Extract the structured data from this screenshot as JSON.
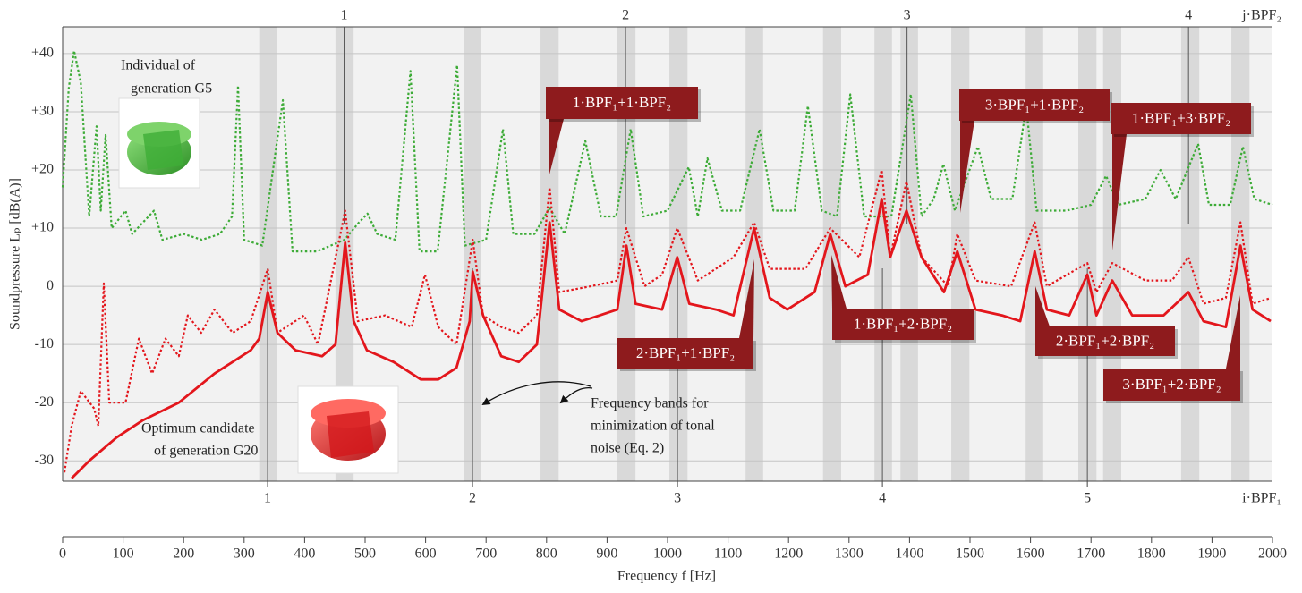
{
  "chart_data": {
    "type": "line",
    "y_label": "Soundpressure Lₚ [dB(A)]",
    "x_label": "Frequency f [Hz]",
    "xlim": [
      0,
      2000
    ],
    "xticks": [
      0,
      100,
      200,
      300,
      400,
      500,
      600,
      700,
      800,
      900,
      1000,
      1100,
      1200,
      1300,
      1400,
      1500,
      1600,
      1700,
      1800,
      1900,
      2000
    ],
    "ylim": [
      -33.5,
      44.6
    ],
    "yticks": [
      {
        "value": 40,
        "label": "+40"
      },
      {
        "value": 30,
        "label": "+30"
      },
      {
        "value": 20,
        "label": "+20"
      },
      {
        "value": 10,
        "label": "+10"
      },
      0,
      -10,
      -20,
      -30
    ],
    "grid": true,
    "bpf1_label": "i·BPF₁",
    "bpf1_ticks": [
      {
        "value": 338.8,
        "label": "1"
      },
      {
        "value": 677.6,
        "label": "2"
      },
      {
        "value": 1016.4,
        "label": "3"
      },
      {
        "value": 1355.2,
        "label": "4"
      },
      {
        "value": 1694.0,
        "label": "5"
      }
    ],
    "bpf2_label": "j·BPF₂",
    "bpf2_ticks": [
      {
        "value": 465.3,
        "label": "1"
      },
      {
        "value": 930.6,
        "label": "2"
      },
      {
        "value": 1395.9,
        "label": "3"
      },
      {
        "value": 1861.2,
        "label": "4"
      }
    ],
    "bands": [
      [
        325,
        355
      ],
      [
        451,
        481
      ],
      [
        663,
        692
      ],
      [
        790,
        820
      ],
      [
        917,
        947
      ],
      [
        1003,
        1033
      ],
      [
        1129,
        1158
      ],
      [
        1257,
        1287
      ],
      [
        1342,
        1371
      ],
      [
        1385,
        1414
      ],
      [
        1469,
        1499
      ],
      [
        1592,
        1621
      ],
      [
        1679,
        1709
      ],
      [
        1720,
        1750
      ],
      [
        1849,
        1879
      ],
      [
        1932,
        1962
      ]
    ],
    "series": [
      {
        "color": "#3dab37",
        "style": "dotted",
        "x": [
          0,
          10,
          19,
          30,
          44,
          56,
          63,
          71,
          81,
          104,
          115,
          151,
          165,
          200,
          230,
          260,
          280,
          290,
          300,
          330,
          364,
          380,
          420,
          466,
          490,
          504,
          520,
          550,
          575,
          590,
          620,
          652,
          665,
          700,
          728,
          745,
          780,
          805,
          830,
          864,
          890,
          915,
          939,
          960,
          1000,
          1035,
          1050,
          1066,
          1090,
          1120,
          1152,
          1175,
          1210,
          1232,
          1255,
          1280,
          1302,
          1325,
          1370,
          1402,
          1420,
          1440,
          1456,
          1475,
          1513,
          1535,
          1570,
          1593,
          1610,
          1660,
          1700,
          1725,
          1745,
          1790,
          1815,
          1840,
          1877,
          1895,
          1930,
          1951,
          1970,
          2000
        ],
        "values": [
          17,
          34,
          40.5,
          35,
          12,
          27.5,
          13,
          26,
          10,
          13,
          9,
          13,
          8,
          9,
          8,
          9,
          12,
          34.5,
          8,
          7,
          32,
          6,
          6,
          8,
          11,
          12.5,
          9,
          8,
          37,
          6,
          6,
          38,
          7,
          8,
          27,
          9,
          9,
          13.5,
          9,
          25,
          12,
          12,
          27,
          12,
          13,
          20.5,
          12,
          22,
          13,
          13,
          27,
          13,
          13,
          31,
          13,
          12,
          33,
          12,
          12,
          33,
          12,
          15,
          21,
          13,
          24,
          15,
          15,
          31,
          13,
          13,
          14,
          19,
          14,
          15,
          20,
          15,
          24.5,
          14,
          14,
          24,
          15,
          14
        ]
      },
      {
        "color": "#e3161c",
        "style": "dotted",
        "x": [
          3,
          15,
          30,
          52,
          59,
          68,
          77,
          104,
          126,
          148,
          170,
          192,
          207,
          229,
          251,
          281,
          311,
          339,
          355,
          399,
          422,
          467,
          488,
          533,
          577,
          599,
          621,
          651,
          678,
          695,
          725,
          754,
          784,
          805,
          821,
          873,
          917,
          932,
          962,
          991,
          1016,
          1050,
          1109,
          1143,
          1169,
          1228,
          1269,
          1317,
          1354,
          1368,
          1395,
          1420,
          1464,
          1479,
          1509,
          1568,
          1607,
          1627,
          1694,
          1709,
          1735,
          1790,
          1834,
          1861,
          1886,
          1923,
          1947,
          1967,
          1997
        ],
        "values": [
          -32,
          -24,
          -18,
          -21,
          -24,
          0.5,
          -20,
          -20,
          -9,
          -15,
          -9,
          -12,
          -5,
          -8,
          -4,
          -8,
          -6,
          3,
          -8,
          -5,
          -10,
          13,
          -6,
          -5,
          -7,
          2,
          -7,
          -10,
          8,
          -5,
          -7,
          -8,
          -5,
          17,
          -1,
          0,
          1,
          10,
          0,
          2,
          10,
          1,
          5,
          11,
          3,
          3,
          10,
          5,
          20,
          5,
          18,
          5,
          0,
          9,
          1,
          0,
          11,
          0,
          4,
          -1,
          4,
          1,
          1,
          5,
          -3,
          -2,
          11,
          -3,
          -2
        ]
      },
      {
        "color": "#e3161c",
        "style": "solid",
        "x": [
          15,
          44,
          89,
          133,
          192,
          251,
          311,
          325,
          339,
          355,
          385,
          429,
          451,
          467,
          481,
          503,
          547,
          592,
          621,
          651,
          673,
          678,
          695,
          725,
          754,
          784,
          805,
          821,
          858,
          888,
          917,
          932,
          947,
          991,
          1016,
          1036,
          1080,
          1109,
          1143,
          1169,
          1198,
          1243,
          1269,
          1294,
          1331,
          1354,
          1368,
          1395,
          1420,
          1457,
          1479,
          1509,
          1553,
          1583,
          1607,
          1627,
          1664,
          1694,
          1709,
          1735,
          1768,
          1820,
          1861,
          1886,
          1923,
          1947,
          1967,
          1997
        ],
        "values": [
          -33,
          -30,
          -26,
          -23,
          -20,
          -15,
          -11,
          -9,
          -1,
          -8,
          -11,
          -12,
          -10,
          7.5,
          -6,
          -11,
          -13,
          -16,
          -16,
          -14,
          -6,
          2.5,
          -5,
          -12,
          -13,
          -10,
          11,
          -4,
          -6,
          -5,
          -4,
          7,
          -3,
          -4,
          5,
          -3,
          -4,
          -5,
          10,
          -2,
          -4,
          -1,
          9,
          0,
          2,
          15,
          5,
          13,
          5,
          -1,
          6,
          -4,
          -5,
          -6,
          6,
          -4,
          -5,
          2,
          -5,
          1,
          -5,
          -5,
          -1,
          -6,
          -7,
          7,
          -4,
          -6
        ]
      }
    ],
    "annotations": [
      "1·BPF₁+1·BPF₂",
      "3·BPF₁+1·BPF₂",
      "1·BPF₁+3·BPF₂",
      "2·BPF₁+1·BPF₂",
      "1·BPF₁+2·BPF₂",
      "2·BPF₁+2·BPF₂",
      "3·BPF₁+2·BPF₂"
    ],
    "notes": {
      "g5": [
        "Individual of",
        "generation G5"
      ],
      "g20": [
        "Optimum candidate",
        "of generation G20"
      ],
      "bands": [
        "Frequency bands for",
        "minimization of tonal",
        "noise (Eq. 2)"
      ]
    }
  }
}
